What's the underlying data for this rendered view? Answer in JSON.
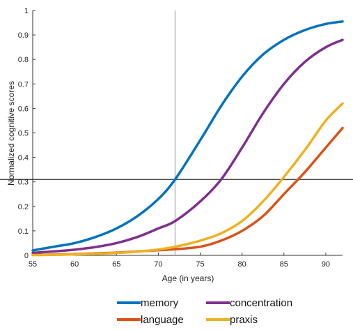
{
  "chart_data": {
    "type": "line",
    "xlabel": "Age (in years)",
    "ylabel": "Normalized cognitive scores",
    "xlim": [
      55,
      92
    ],
    "ylim": [
      0,
      1
    ],
    "xticks": [
      55,
      60,
      65,
      70,
      75,
      80,
      85,
      90
    ],
    "yticks": [
      0,
      0.1,
      0.2,
      0.3,
      0.4,
      0.5,
      0.6,
      0.7,
      0.8,
      0.9,
      1
    ],
    "ytick_labels": [
      "0",
      "0.1",
      "0.2",
      "0.3",
      "0.4",
      "0.5",
      "0.6",
      "0.7",
      "0.8",
      "0.9",
      "1"
    ],
    "grid": false,
    "legend_position": "bottom",
    "reference_lines": {
      "vertical_x": 72,
      "horizontal_y": 0.31
    },
    "x": [
      55,
      57.5,
      60,
      62.5,
      65,
      67.5,
      70,
      72,
      75,
      77.5,
      80,
      82.5,
      85,
      87.5,
      90,
      92
    ],
    "series": [
      {
        "name": "memory",
        "color": "#0072BD",
        "values": [
          0.02,
          0.035,
          0.05,
          0.075,
          0.11,
          0.16,
          0.23,
          0.31,
          0.47,
          0.61,
          0.73,
          0.82,
          0.88,
          0.92,
          0.945,
          0.955
        ]
      },
      {
        "name": "concentration",
        "color": "#7E2F8E",
        "values": [
          0.01,
          0.016,
          0.023,
          0.034,
          0.05,
          0.075,
          0.11,
          0.14,
          0.22,
          0.31,
          0.44,
          0.58,
          0.7,
          0.79,
          0.85,
          0.88
        ]
      },
      {
        "name": "language",
        "color": "#D95319",
        "values": [
          0.002,
          0.003,
          0.005,
          0.008,
          0.011,
          0.016,
          0.021,
          0.025,
          0.035,
          0.06,
          0.1,
          0.16,
          0.25,
          0.34,
          0.44,
          0.52
        ]
      },
      {
        "name": "praxis",
        "color": "#EDB120",
        "values": [
          0.001,
          0.002,
          0.004,
          0.006,
          0.01,
          0.015,
          0.024,
          0.035,
          0.06,
          0.09,
          0.14,
          0.22,
          0.32,
          0.43,
          0.55,
          0.62
        ]
      }
    ]
  }
}
